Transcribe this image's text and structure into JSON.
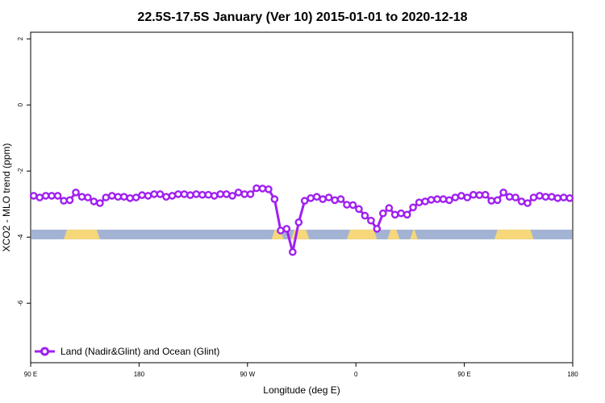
{
  "chart_data": {
    "type": "line",
    "title": "22.5S-17.5S January (Ver 10)   2015-01-01 to 2020-12-18",
    "xlabel": "Longitude (deg E)",
    "ylabel": "XCO2 - MLO trend (ppm)",
    "xlim": [
      90,
      450
    ],
    "ylim": [
      -7.8,
      2.2
    ],
    "x_ticks": [
      {
        "value": 90,
        "label": "90 E"
      },
      {
        "value": 162,
        "label": "180"
      },
      {
        "value": 234,
        "label": "90 W"
      },
      {
        "value": 306,
        "label": "0"
      },
      {
        "value": 378,
        "label": "90 E"
      },
      {
        "value": 450,
        "label": "180"
      }
    ],
    "y_ticks": [
      {
        "value": 2,
        "label": "2"
      },
      {
        "value": 0,
        "label": "0"
      },
      {
        "value": -2,
        "label": "-2"
      },
      {
        "value": -4,
        "label": "-4"
      },
      {
        "value": -6,
        "label": "-6"
      }
    ],
    "grid": false,
    "legend_position": "bottom-left",
    "series": [
      {
        "name": "Land (Nadir&Glint) and Ocean (Glint)",
        "color": "#a020f0",
        "x": [
          92,
          96,
          100,
          104,
          108,
          112,
          116,
          120,
          124,
          128,
          132,
          136,
          140,
          144,
          148,
          152,
          156,
          160,
          164,
          168,
          172,
          176,
          180,
          184,
          188,
          192,
          196,
          200,
          204,
          208,
          212,
          216,
          220,
          224,
          228,
          232,
          236,
          240,
          244,
          248,
          252,
          256,
          260,
          264,
          268,
          272,
          276,
          280,
          284,
          288,
          292,
          296,
          300,
          304,
          308,
          312,
          316,
          320,
          324,
          328,
          332,
          336,
          340,
          344,
          348,
          352,
          356,
          360,
          364,
          368,
          372,
          376,
          380,
          384,
          388,
          392,
          396,
          400,
          404,
          408,
          412,
          416,
          420,
          424,
          428,
          432,
          436,
          440,
          444,
          448
        ],
        "y": [
          -2.75,
          -2.8,
          -2.75,
          -2.75,
          -2.75,
          -2.9,
          -2.88,
          -2.65,
          -2.78,
          -2.8,
          -2.92,
          -2.97,
          -2.8,
          -2.75,
          -2.78,
          -2.78,
          -2.82,
          -2.8,
          -2.73,
          -2.75,
          -2.7,
          -2.7,
          -2.78,
          -2.75,
          -2.7,
          -2.7,
          -2.73,
          -2.7,
          -2.72,
          -2.72,
          -2.75,
          -2.7,
          -2.7,
          -2.75,
          -2.65,
          -2.7,
          -2.7,
          -2.52,
          -2.53,
          -2.55,
          -2.85,
          -3.8,
          -3.75,
          -4.45,
          -3.55,
          -2.9,
          -2.82,
          -2.78,
          -2.85,
          -2.8,
          -2.88,
          -2.85,
          -3.02,
          -3.03,
          -3.15,
          -3.35,
          -3.5,
          -3.75,
          -3.28,
          -3.12,
          -3.32,
          -3.28,
          -3.32,
          -3.1,
          -2.95,
          -2.92,
          -2.87,
          -2.85,
          -2.85,
          -2.88,
          -2.8,
          -2.75,
          -2.8,
          -2.72,
          -2.73,
          -2.72,
          -2.9,
          -2.88,
          -2.65,
          -2.78,
          -2.8,
          -2.92,
          -2.97,
          -2.8,
          -2.75,
          -2.78,
          -2.78,
          -2.82,
          -2.8,
          -2.82
        ]
      }
    ],
    "surface_band": {
      "y": -3.92,
      "ocean_color": "#a3b3d4",
      "land_color": "#f6d77a",
      "land_segments": [
        [
          112,
          136
        ],
        [
          250,
          258
        ],
        [
          263,
          275
        ],
        [
          300,
          320
        ],
        [
          327,
          335
        ],
        [
          342,
          347
        ],
        [
          398,
          424
        ]
      ]
    }
  }
}
